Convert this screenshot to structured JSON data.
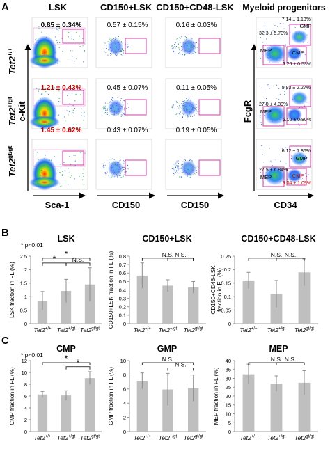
{
  "panel_letters": {
    "a": "A",
    "b": "B",
    "c": "C"
  },
  "panel_a": {
    "column_titles": [
      "LSK",
      "CD150+LSK",
      "CD150+CD48-LSK",
      "Myeloid progenitors"
    ],
    "row_labels": [
      {
        "base": "Tet2",
        "sup": "+/+"
      },
      {
        "base": "Tet2",
        "sup": "+/gt"
      },
      {
        "base": "Tet2",
        "sup": "gt/gt"
      }
    ],
    "axis_labels": {
      "left_y": "c-Kit",
      "x1": "Sca-1",
      "x2": "CD150",
      "x3": "CD150",
      "right_y": "FcgR",
      "x4": "CD34"
    },
    "values": [
      [
        "0.85 ± 0.34%",
        "0.57 ± 0.15%",
        "0.16 ± 0.03%"
      ],
      [
        "1.21 ± 0.43%",
        "0.45 ± 0.07%",
        "0.11 ± 0.05%"
      ],
      [
        "1.45 ± 0.62%",
        "0.43 ± 0.07%",
        "0.19 ± 0.05%"
      ]
    ],
    "highlight": [
      [
        false,
        false,
        false
      ],
      [
        true,
        false,
        false
      ],
      [
        true,
        false,
        false
      ]
    ],
    "myeloid": [
      {
        "gmp_val": "7.14 ± 1.13%",
        "mep_val": "32.3 ± 5.70%",
        "cmp_val": "6.26 ± 0.53%",
        "cmp_highlight": false
      },
      {
        "gmp_val": "5.93 ± 2.27%",
        "mep_val": "27.0 ± 4.39%",
        "cmp_val": "6.10 ± 0.80%",
        "cmp_highlight": false
      },
      {
        "gmp_val": "6.12 ± 1.86%",
        "mep_val": "27.5 ± 6.84%",
        "cmp_val": "9.04 ± 1.09%",
        "cmp_highlight": true
      }
    ],
    "gate_labels": {
      "gmp": "GMP",
      "mep": "MEP",
      "cmp": "CMP"
    }
  },
  "genotype_labels": [
    {
      "base": "Tet2",
      "sup": "+/+"
    },
    {
      "base": "Tet2",
      "sup": "+/gt"
    },
    {
      "base": "Tet2",
      "sup": "gt/gt"
    }
  ],
  "chart_data": [
    {
      "type": "bar",
      "title": "LSK",
      "ylabel": "LSK fraction in FL (%)",
      "ylim": [
        0,
        2.5
      ],
      "yticks": [
        "0",
        "0.5",
        "1",
        "1.5",
        "2",
        "2.5"
      ],
      "values": [
        0.85,
        1.21,
        1.45
      ],
      "errors": [
        0.34,
        0.43,
        0.62
      ],
      "note": "* p<0.01",
      "brackets": [
        {
          "from": 0,
          "to": 1,
          "label": "*"
        },
        {
          "from": 0,
          "to": 2,
          "label": "*"
        },
        {
          "from": 1,
          "to": 2,
          "label": "N.S."
        }
      ]
    },
    {
      "type": "bar",
      "title": "CD150+LSK",
      "ylabel": "CD150+LSK fraction in FL (%)",
      "ylim": [
        0,
        0.8
      ],
      "yticks": [
        "0",
        "0.1",
        "0.2",
        "0.3",
        "0.4",
        "0.5",
        "0.6",
        "0.7",
        "0.8"
      ],
      "values": [
        0.57,
        0.45,
        0.43
      ],
      "errors": [
        0.15,
        0.07,
        0.07
      ],
      "note": "",
      "brackets": [
        {
          "from": 0,
          "to": 2,
          "label": "N.S."
        },
        {
          "from": 1,
          "to": 2,
          "label": "N.S."
        }
      ]
    },
    {
      "type": "bar",
      "title": "CD150+CD48-LSK",
      "ylabel": "CD150+CD48-LSK fraction in FL (%)",
      "ylim": [
        0,
        0.25
      ],
      "yticks": [
        "0",
        "0.05",
        "0.1",
        "0.15",
        "0.2",
        "0.25"
      ],
      "values": [
        0.16,
        0.11,
        0.19
      ],
      "errors": [
        0.03,
        0.05,
        0.05
      ],
      "note": "",
      "brackets": [
        {
          "from": 0,
          "to": 2,
          "label": "N.S."
        },
        {
          "from": 1,
          "to": 2,
          "label": "N.S."
        }
      ]
    },
    {
      "type": "bar",
      "title": "CMP",
      "ylabel": "CMP fraction in FL (%)",
      "ylim": [
        0,
        12
      ],
      "yticks": [
        "0",
        "2",
        "4",
        "6",
        "8",
        "10",
        "12"
      ],
      "values": [
        6.26,
        6.1,
        9.04
      ],
      "errors": [
        0.53,
        0.8,
        1.09
      ],
      "note": "* p<0.01",
      "brackets": [
        {
          "from": 0,
          "to": 2,
          "label": "*"
        },
        {
          "from": 1,
          "to": 2,
          "label": "*"
        }
      ]
    },
    {
      "type": "bar",
      "title": "GMP",
      "ylabel": "GMP fraction in FL (%)",
      "ylim": [
        0,
        10
      ],
      "yticks": [
        "0",
        "2",
        "4",
        "6",
        "8",
        "10"
      ],
      "values": [
        7.14,
        5.93,
        6.12
      ],
      "errors": [
        1.13,
        2.27,
        1.86
      ],
      "note": "",
      "brackets": [
        {
          "from": 0,
          "to": 2,
          "label": "N.S."
        },
        {
          "from": 1,
          "to": 2,
          "label": "N.S."
        }
      ]
    },
    {
      "type": "bar",
      "title": "MEP",
      "ylabel": "MEP fraction in FL (%)",
      "ylim": [
        0,
        40
      ],
      "yticks": [
        "0",
        "5",
        "10",
        "15",
        "20",
        "25",
        "30",
        "35",
        "40"
      ],
      "values": [
        32.3,
        27.0,
        27.5
      ],
      "errors": [
        5.7,
        4.39,
        6.84
      ],
      "note": "",
      "brackets": [
        {
          "from": 0,
          "to": 2,
          "label": "N.S."
        },
        {
          "from": 1,
          "to": 2,
          "label": "N.S."
        }
      ]
    }
  ],
  "colors": {
    "bar": "#bfbfbf",
    "error": "#8c8c8c",
    "highlight": "#c00000",
    "gate": "#d63aa8",
    "axis": "#7f7f7f"
  }
}
